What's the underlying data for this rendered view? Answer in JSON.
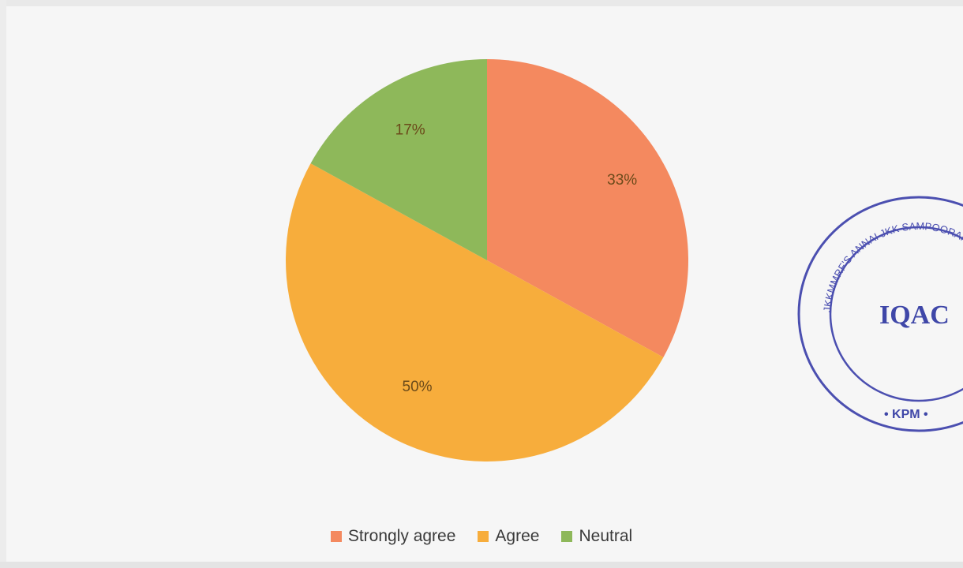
{
  "chart_data": {
    "type": "pie",
    "title": "",
    "categories": [
      "Strongly agree",
      "Agree",
      "Neutral"
    ],
    "values": [
      33,
      50,
      17
    ],
    "labels": [
      "33%",
      "50%",
      "17%"
    ],
    "colors": [
      "#f4895f",
      "#f7ad3c",
      "#8eb85a"
    ],
    "start_angle_deg": 0,
    "direction": "clockwise",
    "legend_position": "bottom"
  },
  "seal": {
    "center_text": "IQAC",
    "ring_text": "JKKMMRF'S ANNAI JKK SAMPOORANI AMMAL COLLEGE",
    "bottom_text": "• KPM •"
  }
}
